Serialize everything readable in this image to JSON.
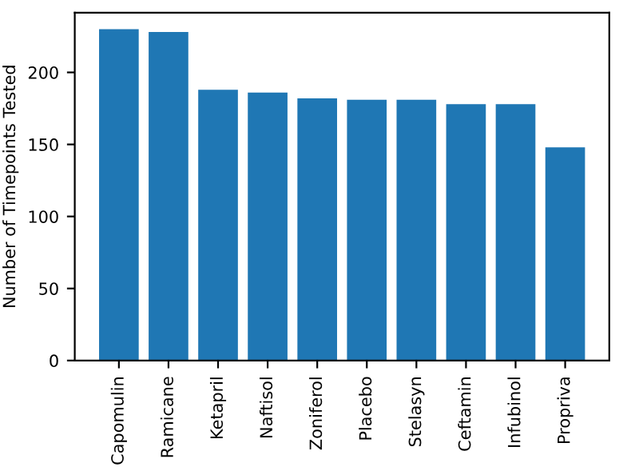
{
  "chart_data": {
    "type": "bar",
    "ylabel": "Number of Timepoints Tested",
    "categories": [
      "Capomulin",
      "Ramicane",
      "Ketapril",
      "Naftisol",
      "Zoniferol",
      "Placebo",
      "Stelasyn",
      "Ceftamin",
      "Infubinol",
      "Propriva"
    ],
    "values": [
      230,
      228,
      188,
      186,
      182,
      181,
      181,
      178,
      178,
      148
    ],
    "color": "#1f77b4",
    "ylim": [
      0,
      241.5
    ],
    "yticks": [
      0,
      50,
      100,
      150,
      200
    ],
    "grid": false,
    "legend": false
  }
}
